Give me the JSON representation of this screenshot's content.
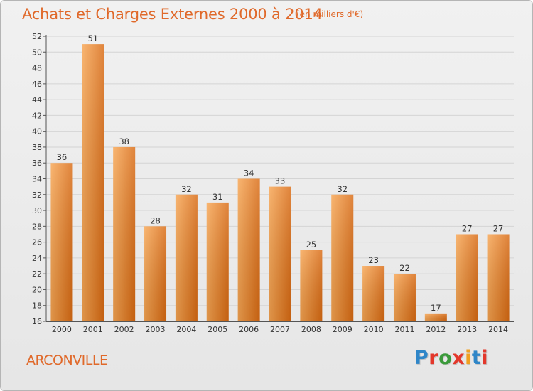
{
  "header": {
    "title": "Achats et Charges Externes 2000 à 2014",
    "unit": "(en milliers d'€)"
  },
  "footer": {
    "commune": "ARCONVILLE",
    "logo_text": "Proxiti"
  },
  "colors": {
    "bar_light": "#f7a552",
    "bar_dark": "#d96a12",
    "title": "#e0692a",
    "logo_letters": [
      "#2f86c8",
      "#e3372b",
      "#3a9a3a",
      "#e3372b",
      "#f0a020",
      "#2f86c8",
      "#e3372b"
    ]
  },
  "chart_data": {
    "type": "bar",
    "title": "Achats et Charges Externes 2000 à 2014",
    "subtitle": "(en milliers d'€)",
    "categories": [
      "2000",
      "2001",
      "2002",
      "2003",
      "2004",
      "2005",
      "2006",
      "2007",
      "2008",
      "2009",
      "2010",
      "2011",
      "2012",
      "2013",
      "2014"
    ],
    "values": [
      36,
      51,
      38,
      28,
      32,
      31,
      34,
      33,
      25,
      32,
      23,
      22,
      17,
      27,
      27
    ],
    "ylim": [
      16,
      52
    ],
    "yticks": [
      16,
      18,
      20,
      22,
      24,
      26,
      28,
      30,
      32,
      34,
      36,
      38,
      40,
      42,
      44,
      46,
      48,
      50,
      52
    ],
    "grid": true,
    "xlabel": "",
    "ylabel": ""
  }
}
